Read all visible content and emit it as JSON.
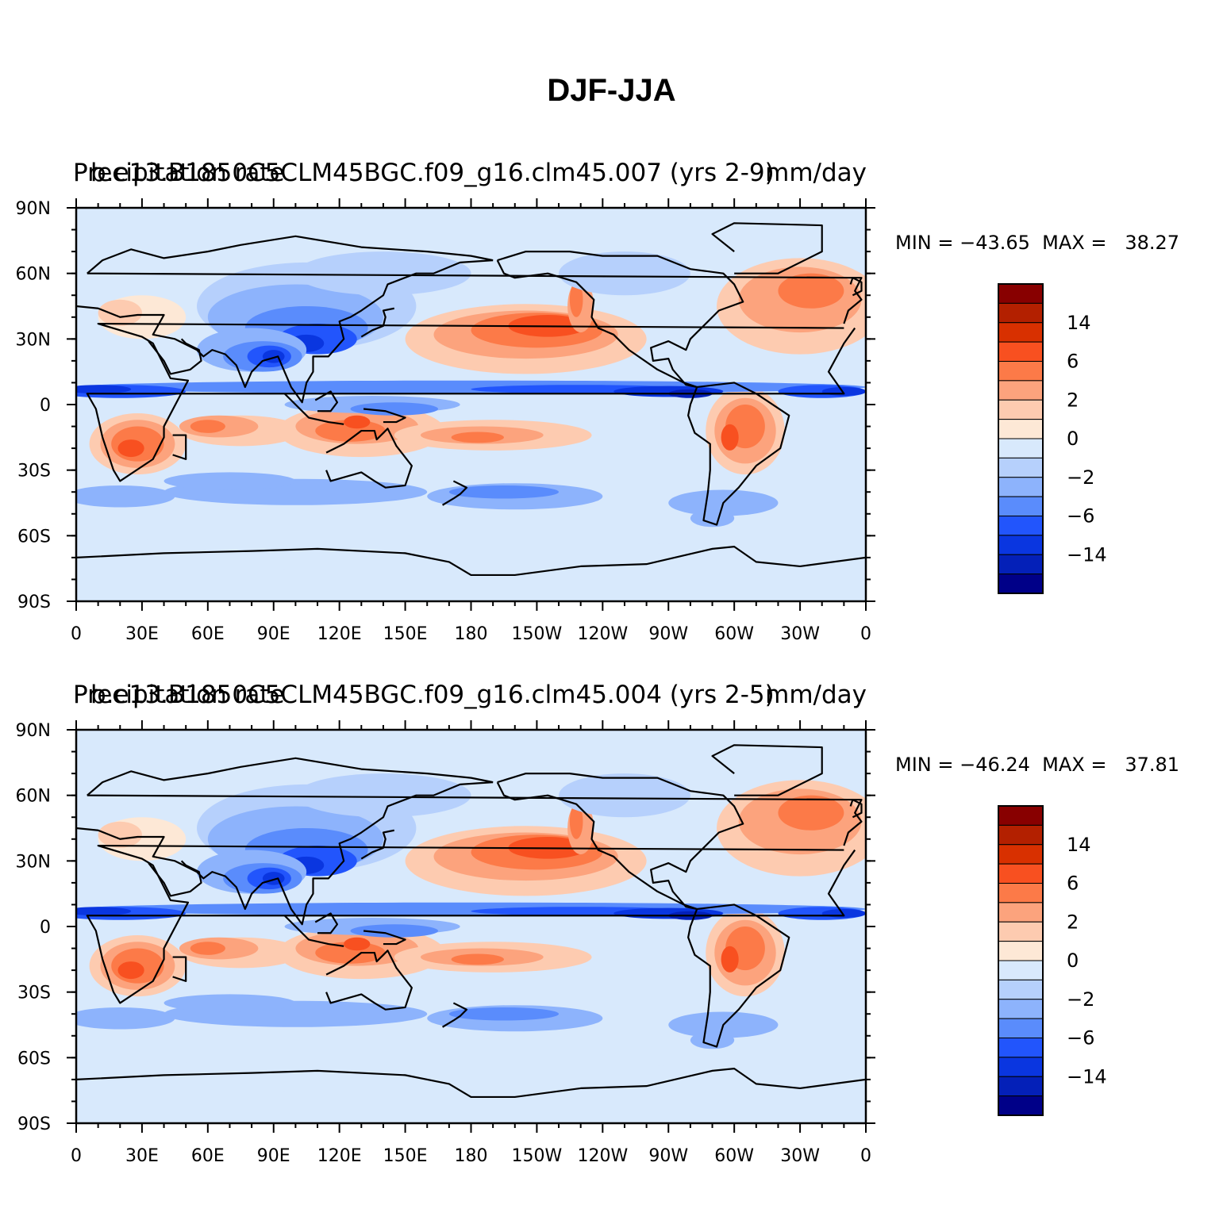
{
  "title": "DJF-JJA",
  "panels": [
    {
      "left_string": "Precipitation rate",
      "center_string": "b.e13.B1850C5CLM45BGC.f09_g16.clm45.007 (yrs 2-9)",
      "right_string": "mm/day",
      "minmax": "MIN = −43.65  MAX =   38.27",
      "min": -43.65,
      "max": 38.27
    },
    {
      "left_string": "Precipitation rate",
      "center_string": "b.e13.B1850C5CLM45BGC.f09_g16.clm45.004 (yrs 2-5)",
      "right_string": "mm/day",
      "minmax": "MIN = −46.24  MAX =   37.81",
      "min": -46.24,
      "max": 37.81
    }
  ],
  "lat_labels": [
    "90N",
    "60N",
    "30N",
    "0",
    "30S",
    "60S",
    "90S"
  ],
  "lon_labels": [
    "0",
    "30E",
    "60E",
    "90E",
    "120E",
    "150E",
    "180",
    "150W",
    "120W",
    "90W",
    "60W",
    "30W",
    "0"
  ],
  "colorbar": {
    "colors": [
      "#880000",
      "#b32000",
      "#d83000",
      "#f85020",
      "#fc7a48",
      "#fca37d",
      "#fdcbb0",
      "#fde8d6",
      "#d8e9fc",
      "#b6d0fc",
      "#8db3fc",
      "#5a8cfc",
      "#2255fc",
      "#0a36e0",
      "#0420b8",
      "#000088"
    ],
    "labels": [
      "14",
      "6",
      "2",
      "0",
      "−2",
      "−6",
      "−14"
    ]
  }
}
